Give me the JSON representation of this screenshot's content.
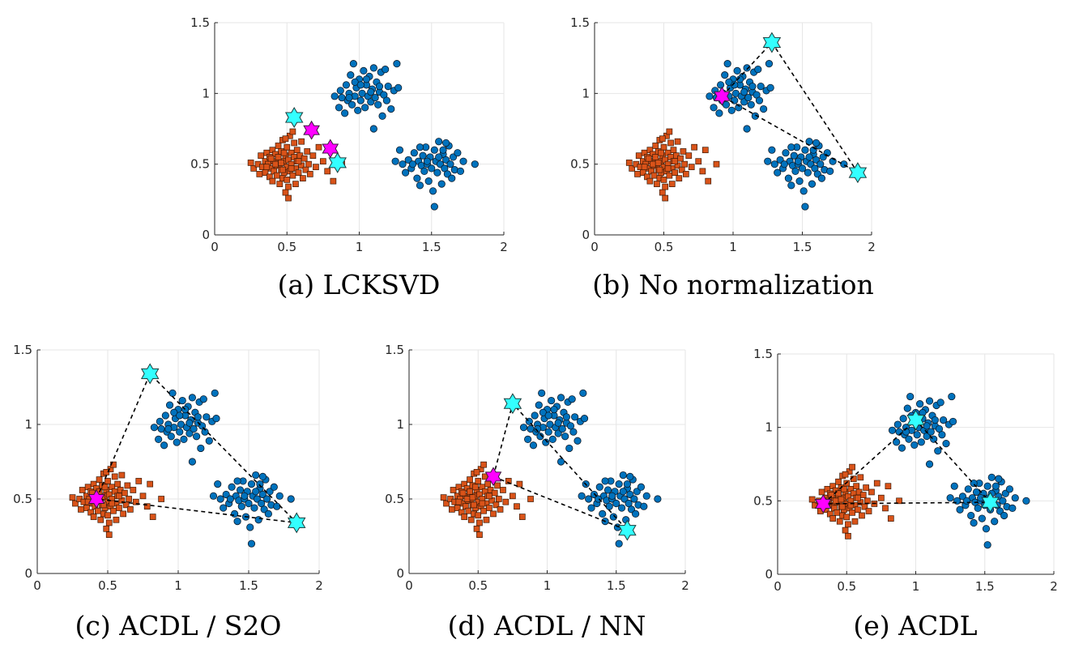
{
  "chart_data": [
    {
      "type": "scatter",
      "caption": "(a) LCKSVD",
      "xlim": [
        0,
        2
      ],
      "ylim": [
        0,
        1.5
      ],
      "xticks": [
        "0",
        "0.5",
        "1",
        "1.5",
        "2"
      ],
      "yticks": [
        "0",
        "0.5",
        "1",
        "1.5"
      ],
      "grid": true,
      "anchors": [
        [
          0.55,
          0.83
        ],
        [
          0.85,
          0.51
        ]
      ],
      "centers": [
        [
          0.67,
          0.74
        ],
        [
          0.8,
          0.61
        ]
      ],
      "polygon": []
    },
    {
      "type": "scatter",
      "caption": "(b) No normalization",
      "xlim": [
        0,
        2
      ],
      "ylim": [
        0,
        1.5
      ],
      "xticks": [
        "0",
        "0.5",
        "1",
        "1.5",
        "2"
      ],
      "yticks": [
        "0",
        "0.5",
        "1",
        "1.5"
      ],
      "grid": true,
      "anchors": [
        [
          1.28,
          1.36
        ],
        [
          1.9,
          0.44
        ]
      ],
      "centers": [
        [
          0.92,
          0.98
        ]
      ],
      "polygon": [
        [
          0.92,
          0.98
        ],
        [
          1.28,
          1.36
        ],
        [
          1.9,
          0.44
        ]
      ]
    },
    {
      "type": "scatter",
      "caption": "(c) ACDL / S2O",
      "xlim": [
        0,
        2
      ],
      "ylim": [
        0,
        1.5
      ],
      "xticks": [
        "0",
        "0.5",
        "1",
        "1.5",
        "2"
      ],
      "yticks": [
        "0",
        "0.5",
        "1",
        "1.5"
      ],
      "grid": true,
      "anchors": [
        [
          0.8,
          1.34
        ],
        [
          1.84,
          0.34
        ]
      ],
      "centers": [
        [
          0.42,
          0.5
        ]
      ],
      "polygon": [
        [
          0.42,
          0.5
        ],
        [
          0.8,
          1.34
        ],
        [
          1.84,
          0.34
        ]
      ]
    },
    {
      "type": "scatter",
      "caption": "(d) ACDL / NN",
      "xlim": [
        0,
        2
      ],
      "ylim": [
        0,
        1.5
      ],
      "xticks": [
        "0",
        "0.5",
        "1",
        "1.5",
        "2"
      ],
      "yticks": [
        "0",
        "0.5",
        "1",
        "1.5"
      ],
      "grid": true,
      "anchors": [
        [
          0.75,
          1.14
        ],
        [
          1.58,
          0.29
        ]
      ],
      "centers": [
        [
          0.61,
          0.65
        ]
      ],
      "polygon": [
        [
          0.61,
          0.65
        ],
        [
          0.75,
          1.14
        ],
        [
          1.58,
          0.29
        ]
      ]
    },
    {
      "type": "scatter",
      "caption": "(e) ACDL",
      "xlim": [
        0,
        2
      ],
      "ylim": [
        0,
        1.5
      ],
      "xticks": [
        "0",
        "0.5",
        "1",
        "1.5",
        "2"
      ],
      "yticks": [
        "0",
        "0.5",
        "1",
        "1.5"
      ],
      "grid": true,
      "anchors": [
        [
          1.0,
          1.05
        ],
        [
          1.54,
          0.49
        ]
      ],
      "centers": [
        [
          0.33,
          0.48
        ]
      ],
      "polygon": [
        [
          0.33,
          0.48
        ],
        [
          1.0,
          1.05
        ],
        [
          1.54,
          0.49
        ]
      ]
    }
  ],
  "shared_points": {
    "squares": [
      [
        0.25,
        0.51
      ],
      [
        0.27,
        0.47
      ],
      [
        0.3,
        0.5
      ],
      [
        0.31,
        0.43
      ],
      [
        0.32,
        0.56
      ],
      [
        0.33,
        0.48
      ],
      [
        0.35,
        0.52
      ],
      [
        0.35,
        0.44
      ],
      [
        0.36,
        0.58
      ],
      [
        0.37,
        0.5
      ],
      [
        0.38,
        0.41
      ],
      [
        0.38,
        0.55
      ],
      [
        0.39,
        0.47
      ],
      [
        0.4,
        0.6
      ],
      [
        0.4,
        0.38
      ],
      [
        0.41,
        0.52
      ],
      [
        0.41,
        0.45
      ],
      [
        0.42,
        0.57
      ],
      [
        0.43,
        0.49
      ],
      [
        0.43,
        0.42
      ],
      [
        0.44,
        0.63
      ],
      [
        0.44,
        0.54
      ],
      [
        0.45,
        0.36
      ],
      [
        0.45,
        0.5
      ],
      [
        0.46,
        0.46
      ],
      [
        0.46,
        0.59
      ],
      [
        0.47,
        0.4
      ],
      [
        0.47,
        0.67
      ],
      [
        0.48,
        0.52
      ],
      [
        0.48,
        0.44
      ],
      [
        0.49,
        0.56
      ],
      [
        0.49,
        0.3
      ],
      [
        0.5,
        0.48
      ],
      [
        0.5,
        0.62
      ],
      [
        0.5,
        0.39
      ],
      [
        0.51,
        0.53
      ],
      [
        0.51,
        0.26
      ],
      [
        0.52,
        0.45
      ],
      [
        0.52,
        0.7
      ],
      [
        0.53,
        0.5
      ],
      [
        0.53,
        0.58
      ],
      [
        0.54,
        0.42
      ],
      [
        0.55,
        0.55
      ],
      [
        0.55,
        0.65
      ],
      [
        0.56,
        0.47
      ],
      [
        0.56,
        0.36
      ],
      [
        0.57,
        0.52
      ],
      [
        0.57,
        0.6
      ],
      [
        0.58,
        0.44
      ],
      [
        0.59,
        0.56
      ],
      [
        0.6,
        0.49
      ],
      [
        0.6,
        0.66
      ],
      [
        0.61,
        0.4
      ],
      [
        0.62,
        0.54
      ],
      [
        0.63,
        0.46
      ],
      [
        0.64,
        0.59
      ],
      [
        0.65,
        0.5
      ],
      [
        0.66,
        0.43
      ],
      [
        0.68,
        0.56
      ],
      [
        0.7,
        0.48
      ],
      [
        0.72,
        0.62
      ],
      [
        0.75,
        0.52
      ],
      [
        0.78,
        0.45
      ],
      [
        0.8,
        0.6
      ],
      [
        0.82,
        0.38
      ],
      [
        0.88,
        0.5
      ],
      [
        0.42,
        0.5
      ],
      [
        0.47,
        0.46
      ],
      [
        0.53,
        0.47
      ],
      [
        0.44,
        0.55
      ],
      [
        0.58,
        0.52
      ],
      [
        0.39,
        0.54
      ],
      [
        0.49,
        0.68
      ],
      [
        0.54,
        0.73
      ],
      [
        0.51,
        0.34
      ],
      [
        0.46,
        0.51
      ],
      [
        0.36,
        0.48
      ],
      [
        0.48,
        0.58
      ]
    ],
    "circles": [
      [
        0.83,
        0.98
      ],
      [
        0.86,
        0.9
      ],
      [
        0.87,
        1.02
      ],
      [
        0.88,
        0.97
      ],
      [
        0.9,
        0.86
      ],
      [
        0.91,
        1.06
      ],
      [
        0.92,
        0.95
      ],
      [
        0.93,
        1.0
      ],
      [
        0.94,
        1.13
      ],
      [
        0.95,
        0.92
      ],
      [
        0.96,
        1.21
      ],
      [
        0.97,
        0.98
      ],
      [
        0.98,
        1.04
      ],
      [
        0.99,
        0.88
      ],
      [
        1.0,
        1.1
      ],
      [
        1.01,
        0.95
      ],
      [
        1.02,
        1.0
      ],
      [
        1.03,
        1.16
      ],
      [
        1.04,
        0.9
      ],
      [
        1.05,
        1.06
      ],
      [
        1.06,
        0.98
      ],
      [
        1.07,
        1.12
      ],
      [
        1.08,
        0.94
      ],
      [
        1.09,
        1.03
      ],
      [
        1.1,
        1.18
      ],
      [
        1.11,
        0.97
      ],
      [
        1.12,
        1.08
      ],
      [
        1.13,
        0.92
      ],
      [
        1.14,
        1.01
      ],
      [
        1.15,
        1.15
      ],
      [
        1.16,
        0.84
      ],
      [
        1.17,
        0.99
      ],
      [
        1.18,
        1.17
      ],
      [
        1.19,
        0.95
      ],
      [
        1.2,
        1.05
      ],
      [
        1.22,
        0.89
      ],
      [
        1.24,
        1.02
      ],
      [
        1.26,
        1.21
      ],
      [
        1.27,
        1.04
      ],
      [
        1.1,
        0.75
      ],
      [
        0.97,
        1.08
      ],
      [
        1.05,
        1.1
      ],
      [
        0.93,
        0.97
      ],
      [
        1.14,
        1.05
      ],
      [
        1.01,
        1.06
      ],
      [
        1.08,
        1.01
      ],
      [
        1.25,
        0.52
      ],
      [
        1.28,
        0.6
      ],
      [
        1.3,
        0.5
      ],
      [
        1.32,
        0.44
      ],
      [
        1.34,
        0.53
      ],
      [
        1.36,
        0.47
      ],
      [
        1.38,
        0.58
      ],
      [
        1.4,
        0.4
      ],
      [
        1.41,
        0.52
      ],
      [
        1.42,
        0.35
      ],
      [
        1.43,
        0.49
      ],
      [
        1.44,
        0.56
      ],
      [
        1.45,
        0.45
      ],
      [
        1.46,
        0.62
      ],
      [
        1.47,
        0.5
      ],
      [
        1.48,
        0.38
      ],
      [
        1.49,
        0.55
      ],
      [
        1.5,
        0.47
      ],
      [
        1.51,
        0.31
      ],
      [
        1.52,
        0.6
      ],
      [
        1.53,
        0.52
      ],
      [
        1.54,
        0.44
      ],
      [
        1.55,
        0.66
      ],
      [
        1.56,
        0.5
      ],
      [
        1.57,
        0.36
      ],
      [
        1.58,
        0.57
      ],
      [
        1.59,
        0.47
      ],
      [
        1.6,
        0.53
      ],
      [
        1.61,
        0.43
      ],
      [
        1.62,
        0.63
      ],
      [
        1.63,
        0.5
      ],
      [
        1.64,
        0.4
      ],
      [
        1.65,
        0.55
      ],
      [
        1.66,
        0.46
      ],
      [
        1.68,
        0.58
      ],
      [
        1.7,
        0.45
      ],
      [
        1.72,
        0.52
      ],
      [
        1.8,
        0.5
      ],
      [
        1.52,
        0.2
      ],
      [
        1.58,
        0.6
      ],
      [
        1.47,
        0.52
      ],
      [
        1.55,
        0.55
      ],
      [
        1.42,
        0.62
      ],
      [
        1.37,
        0.5
      ],
      [
        1.6,
        0.65
      ]
    ]
  },
  "colors": {
    "square_fill": "#d95319",
    "circle_fill": "#0072bd",
    "anchor_fill": "#33ffff",
    "center_fill": "#ff00ff",
    "grid": "#e6e6e6",
    "axis": "#262626"
  }
}
